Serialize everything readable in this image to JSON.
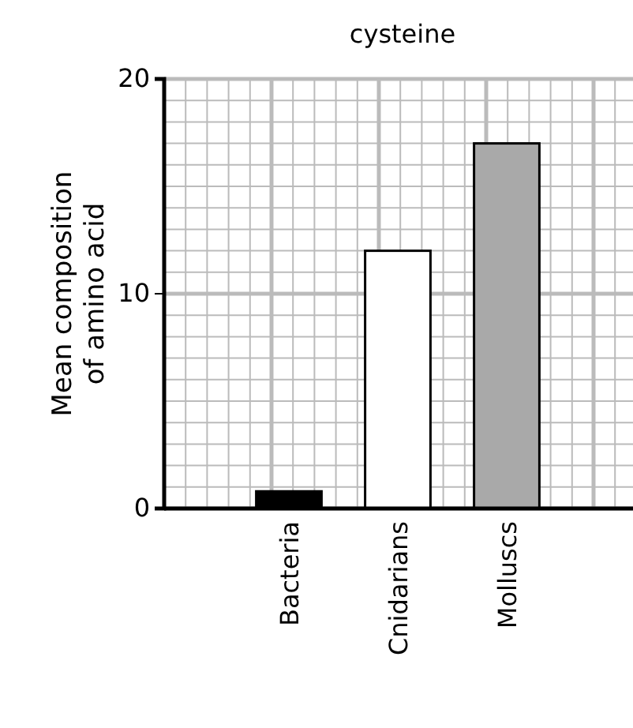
{
  "chart_data": {
    "type": "bar",
    "title": "cysteine",
    "ylabel": "Mean composition\nof amino acid",
    "categories": [
      "Bacteria",
      "Cnidarians",
      "Molluscs"
    ],
    "values": [
      0.8,
      12,
      17
    ],
    "colors": [
      "#000000",
      "#ffffff",
      "#a9a9a9"
    ],
    "ylim": [
      0,
      20
    ],
    "yticks": [
      0,
      {
        "value": 1,
        "label": null
      },
      {
        "value": 2,
        "label": null
      },
      {
        "value": 3,
        "label": null
      },
      {
        "value": 4,
        "label": null
      },
      {
        "value": 5,
        "label": null
      },
      {
        "value": 6,
        "label": null
      },
      {
        "value": 7,
        "label": null
      },
      {
        "value": 8,
        "label": null
      },
      {
        "value": 9,
        "label": null
      },
      10,
      {
        "value": 11,
        "label": null
      },
      {
        "value": 12,
        "label": null
      },
      {
        "value": 13,
        "label": null
      },
      {
        "value": 14,
        "label": null
      },
      {
        "value": 15,
        "label": null
      },
      {
        "value": 16,
        "label": null
      },
      {
        "value": 17,
        "label": null
      },
      {
        "value": 18,
        "label": null
      },
      {
        "value": 19,
        "label": null
      },
      20
    ],
    "grid": true
  }
}
